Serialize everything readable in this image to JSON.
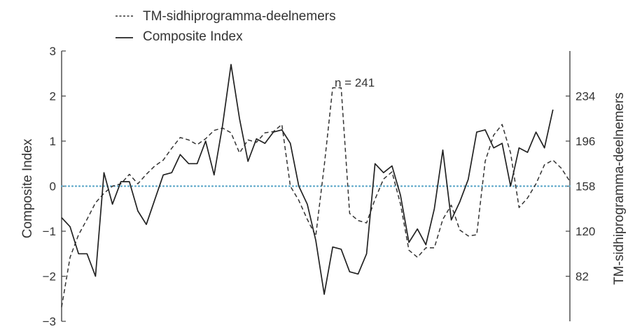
{
  "chart_data": {
    "type": "line",
    "title": "",
    "xlabel": "",
    "ylabel": "Composite Index",
    "ylabel_right": "TM-sidhiprogramma-deelnemers",
    "ylim": [
      -3,
      3
    ],
    "ylim_right": [
      44,
      272
    ],
    "y_ticks": [
      -3,
      -2,
      -1,
      0,
      1,
      2,
      3
    ],
    "y_ticks_right": [
      82,
      120,
      158,
      196,
      234
    ],
    "legend_position": "top-left",
    "grid": false,
    "zero_line_color": "#5aa6c8",
    "annotation": {
      "text": "n = 241",
      "series": "TM-sidhiprogramma-deelnemers"
    },
    "series": [
      {
        "name": "TM-sidhiprogramma-deelnemers",
        "axis": "right",
        "style": "dashed",
        "color": "#333333",
        "points": [
          [
            0,
            56
          ],
          [
            1,
            98
          ],
          [
            2,
            117
          ],
          [
            3,
            130
          ],
          [
            4,
            144
          ],
          [
            5,
            152
          ],
          [
            6,
            158
          ],
          [
            7,
            160
          ],
          [
            8,
            168
          ],
          [
            9,
            160
          ],
          [
            10,
            168
          ],
          [
            11,
            175
          ],
          [
            12,
            180
          ],
          [
            13,
            190
          ],
          [
            14,
            199
          ],
          [
            15,
            197
          ],
          [
            16,
            193
          ],
          [
            17,
            198
          ],
          [
            18,
            205
          ],
          [
            19,
            207
          ],
          [
            20,
            203
          ],
          [
            21,
            186
          ],
          [
            22,
            197
          ],
          [
            23,
            195
          ],
          [
            24,
            203
          ],
          [
            25,
            204
          ],
          [
            26,
            210
          ],
          [
            27,
            158
          ],
          [
            28,
            146
          ],
          [
            29,
            130
          ],
          [
            30,
            116
          ],
          [
            31,
            175
          ],
          [
            32,
            241
          ],
          [
            33,
            241
          ],
          [
            34,
            135
          ],
          [
            35,
            129
          ],
          [
            36,
            127
          ],
          [
            37,
            147
          ],
          [
            38,
            164
          ],
          [
            39,
            170
          ],
          [
            40,
            143
          ],
          [
            41,
            104
          ],
          [
            42,
            98
          ],
          [
            43,
            106
          ],
          [
            44,
            106
          ],
          [
            45,
            130
          ],
          [
            46,
            142
          ],
          [
            47,
            121
          ],
          [
            48,
            116
          ],
          [
            49,
            117
          ],
          [
            50,
            179
          ],
          [
            51,
            201
          ],
          [
            52,
            210
          ],
          [
            53,
            186
          ],
          [
            54,
            140
          ],
          [
            55,
            148
          ],
          [
            56,
            160
          ],
          [
            57,
            176
          ],
          [
            58,
            180
          ],
          [
            59,
            173
          ],
          [
            60,
            162
          ]
        ]
      },
      {
        "name": "Composite Index",
        "axis": "left",
        "style": "solid",
        "color": "#222222",
        "points": [
          [
            0,
            -0.7
          ],
          [
            1,
            -0.9
          ],
          [
            2,
            -1.5
          ],
          [
            3,
            -1.5
          ],
          [
            4,
            -2.0
          ],
          [
            5,
            0.3
          ],
          [
            6,
            -0.4
          ],
          [
            7,
            0.1
          ],
          [
            8,
            0.1
          ],
          [
            9,
            -0.55
          ],
          [
            10,
            -0.85
          ],
          [
            11,
            -0.3
          ],
          [
            12,
            0.25
          ],
          [
            13,
            0.3
          ],
          [
            14,
            0.7
          ],
          [
            15,
            0.5
          ],
          [
            16,
            0.5
          ],
          [
            17,
            1.0
          ],
          [
            18,
            0.25
          ],
          [
            19,
            1.35
          ],
          [
            20,
            2.7
          ],
          [
            21,
            1.5
          ],
          [
            22,
            0.55
          ],
          [
            23,
            1.05
          ],
          [
            24,
            0.95
          ],
          [
            25,
            1.2
          ],
          [
            26,
            1.25
          ],
          [
            27,
            0.95
          ],
          [
            28,
            0.0
          ],
          [
            29,
            -0.4
          ],
          [
            30,
            -1.2
          ],
          [
            31,
            -2.4
          ],
          [
            32,
            -1.35
          ],
          [
            33,
            -1.4
          ],
          [
            34,
            -1.9
          ],
          [
            35,
            -1.95
          ],
          [
            36,
            -1.5
          ],
          [
            37,
            0.5
          ],
          [
            38,
            0.3
          ],
          [
            39,
            0.45
          ],
          [
            40,
            -0.2
          ],
          [
            41,
            -1.25
          ],
          [
            42,
            -0.95
          ],
          [
            43,
            -1.3
          ],
          [
            44,
            -0.5
          ],
          [
            45,
            0.8
          ],
          [
            46,
            -0.75
          ],
          [
            47,
            -0.35
          ],
          [
            48,
            0.15
          ],
          [
            49,
            1.2
          ],
          [
            50,
            1.25
          ],
          [
            51,
            0.85
          ],
          [
            52,
            0.95
          ],
          [
            53,
            0.0
          ],
          [
            54,
            0.85
          ],
          [
            55,
            0.75
          ],
          [
            56,
            1.2
          ],
          [
            57,
            0.85
          ],
          [
            58,
            1.7
          ]
        ]
      }
    ]
  }
}
